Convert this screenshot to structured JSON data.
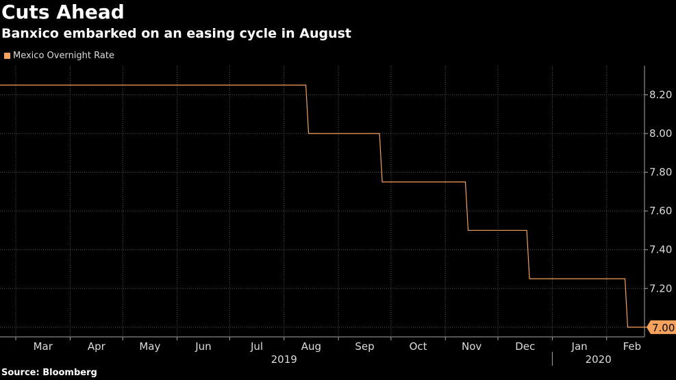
{
  "header": {
    "title": "Cuts Ahead",
    "subtitle": "Banxico embarked on an easing cycle in August"
  },
  "footer": {
    "source": "Source: Bloomberg"
  },
  "colors": {
    "series": "#f5a35c",
    "grid": "#555555",
    "background": "#000000"
  },
  "chart_data": {
    "type": "line",
    "title": "Cuts Ahead",
    "subtitle": "Banxico embarked on an easing cycle in August",
    "legend": "top-left",
    "grid": true,
    "ylim": [
      6.95,
      8.35
    ],
    "y_ticks": [
      7.0,
      7.2,
      7.4,
      7.6,
      7.8,
      8.0,
      8.2
    ],
    "y_tick_labels": [
      "7.00",
      "7.20",
      "7.40",
      "7.60",
      "7.80",
      "8.00",
      "8.20"
    ],
    "x_month_labels": [
      "Mar",
      "Apr",
      "May",
      "Jun",
      "Jul",
      "Aug",
      "Sep",
      "Oct",
      "Nov",
      "Dec",
      "Jan",
      "Feb"
    ],
    "x_year_labels": [
      "2019",
      "2020"
    ],
    "xlim": [
      "2019-02-20",
      "2020-02-29"
    ],
    "series": [
      {
        "name": "Mexico Overnight Rate",
        "step": true,
        "points": [
          {
            "x": "2019-02-20",
            "y": 8.25
          },
          {
            "x": "2019-08-15",
            "y": 8.0
          },
          {
            "x": "2019-09-26",
            "y": 7.75
          },
          {
            "x": "2019-11-14",
            "y": 7.5
          },
          {
            "x": "2019-12-19",
            "y": 7.25
          },
          {
            "x": "2020-02-13",
            "y": 7.0
          },
          {
            "x": "2020-02-29",
            "y": 7.0
          }
        ],
        "last_value_label": "7.00"
      }
    ]
  }
}
